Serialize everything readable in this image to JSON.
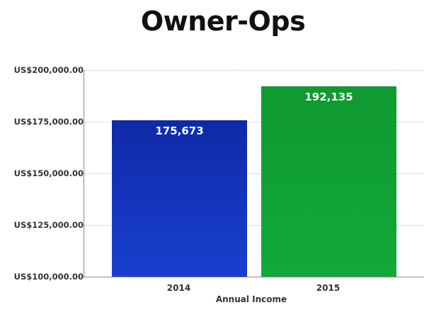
{
  "chart_data": {
    "type": "bar",
    "title": "Owner-Ops",
    "xlabel": "Annual Income",
    "ylabel": "",
    "categories": [
      "2014",
      "2015"
    ],
    "values": [
      175673,
      192135
    ],
    "value_labels": [
      "175,673",
      "192,135"
    ],
    "colors": [
      "#1a3fd0",
      "#12a83a"
    ],
    "ylim": [
      100000,
      200000
    ],
    "yticks": [
      100000,
      125000,
      150000,
      175000,
      200000
    ],
    "ytick_labels": [
      "US$100,000.00",
      "US$125,000.00",
      "US$150,000.00",
      "US$175,000.00",
      "US$200,000.00"
    ],
    "grid": true,
    "legend": "none"
  }
}
